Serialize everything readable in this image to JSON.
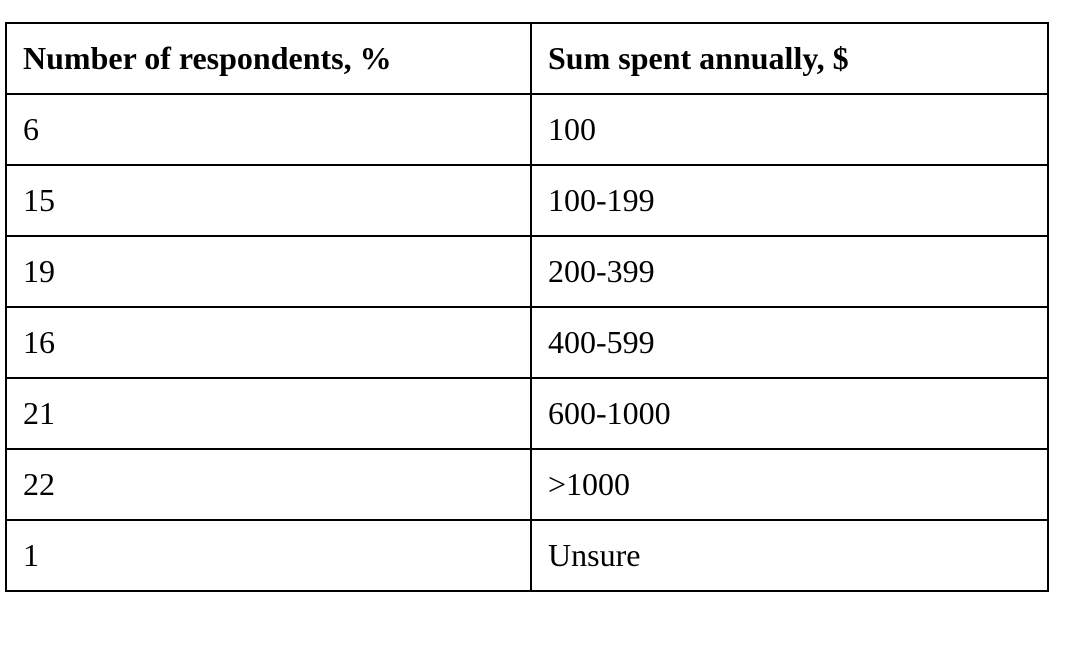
{
  "table": {
    "headers": [
      "Number of respondents, %",
      "Sum spent annually, $"
    ],
    "rows": [
      [
        "6",
        "100"
      ],
      [
        "15",
        "100-199"
      ],
      [
        "19",
        "200-399"
      ],
      [
        "16",
        "400-599"
      ],
      [
        "21",
        "600-1000"
      ],
      [
        "22",
        ">1000"
      ],
      [
        "1",
        "Unsure"
      ]
    ]
  }
}
